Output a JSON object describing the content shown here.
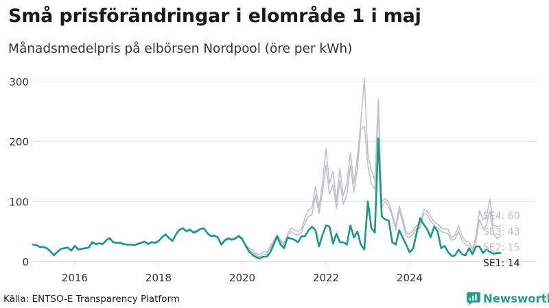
{
  "header": {
    "title": "Små prisförändringar i elområde 1 i maj",
    "subtitle": "Månadsmedelpris på elbörsen Nordpool (öre per kWh)"
  },
  "footer": {
    "source": "Källa: ENTSO-E Transparency Platform",
    "brand": "Newsworthy"
  },
  "colors": {
    "highlight": "#1b9783",
    "muted": "#c0bfc8",
    "muted_label": "#bdbdc3",
    "grid": "#e4e4e4",
    "brand": "#2a9d8f"
  },
  "chart_data": {
    "type": "line",
    "title": "Små prisförändringar i elområde 1 i maj",
    "subtitle": "Månadsmedelpris på elbörsen Nordpool (öre per kWh)",
    "xlabel": "",
    "ylabel": "",
    "x_start": "2015-01",
    "x_ticks": [
      2016,
      2018,
      2020,
      2022,
      2024
    ],
    "y_ticks": [
      0,
      100,
      200,
      300
    ],
    "xlim": [
      2015.0,
      2027.0
    ],
    "ylim": [
      0,
      310
    ],
    "grid": "horizontal",
    "series": [
      {
        "name": "SE4",
        "label": "SE4: 60",
        "highlight": false,
        "values": [
          28,
          27,
          24,
          24,
          22,
          18,
          11,
          16,
          21,
          23,
          24,
          18,
          27,
          21,
          21,
          23,
          24,
          33,
          30,
          31,
          30,
          36,
          40,
          33,
          31,
          32,
          30,
          28,
          29,
          28,
          30,
          32,
          34,
          30,
          33,
          32,
          35,
          41,
          46,
          40,
          35,
          46,
          54,
          56,
          52,
          54,
          50,
          52,
          55,
          56,
          48,
          43,
          44,
          41,
          30,
          37,
          40,
          38,
          40,
          44,
          39,
          28,
          22,
          19,
          13,
          12,
          16,
          16,
          25,
          35,
          44,
          36,
          30,
          46,
          56,
          52,
          50,
          54,
          73,
          86,
          90,
          125,
          90,
          130,
          188,
          130,
          150,
          100,
          155,
          110,
          130,
          180,
          130,
          175,
          230,
          305,
          180,
          152,
          135,
          270,
          100,
          105,
          98,
          80,
          58,
          92,
          72,
          48,
          45,
          52,
          60,
          62,
          86,
          84,
          75,
          66,
          62,
          56,
          54,
          54,
          40,
          44,
          60,
          42,
          34,
          32,
          20,
          42,
          85,
          70,
          75,
          104,
          60,
          58,
          60
        ]
      },
      {
        "name": "SE3",
        "label": "SE3: 43",
        "highlight": false,
        "values": [
          28,
          27,
          24,
          24,
          22,
          18,
          11,
          16,
          21,
          22,
          23,
          18,
          26,
          20,
          21,
          22,
          23,
          32,
          29,
          30,
          29,
          35,
          39,
          32,
          31,
          31,
          29,
          28,
          28,
          27,
          29,
          31,
          33,
          29,
          32,
          31,
          34,
          40,
          45,
          39,
          34,
          45,
          53,
          55,
          50,
          53,
          48,
          50,
          54,
          55,
          47,
          42,
          43,
          40,
          29,
          36,
          39,
          37,
          39,
          43,
          38,
          27,
          19,
          15,
          10,
          8,
          12,
          12,
          22,
          32,
          42,
          33,
          27,
          42,
          50,
          46,
          44,
          48,
          65,
          75,
          78,
          110,
          80,
          115,
          160,
          112,
          128,
          88,
          135,
          95,
          112,
          160,
          115,
          155,
          220,
          225,
          160,
          130,
          120,
          252,
          90,
          100,
          90,
          75,
          52,
          85,
          65,
          42,
          40,
          46,
          55,
          56,
          80,
          78,
          68,
          60,
          56,
          50,
          48,
          46,
          35,
          38,
          50,
          35,
          28,
          26,
          15,
          35,
          70,
          55,
          60,
          84,
          48,
          38,
          43
        ]
      },
      {
        "name": "SE2",
        "label": "SE2: 15",
        "highlight": false,
        "values": [
          28,
          27,
          24,
          24,
          22,
          17,
          10,
          16,
          21,
          22,
          23,
          18,
          26,
          20,
          21,
          22,
          23,
          32,
          29,
          30,
          29,
          35,
          39,
          32,
          31,
          31,
          29,
          28,
          28,
          27,
          29,
          31,
          33,
          29,
          32,
          31,
          34,
          40,
          45,
          39,
          34,
          45,
          53,
          55,
          50,
          53,
          48,
          50,
          54,
          55,
          47,
          42,
          43,
          40,
          28,
          35,
          38,
          36,
          38,
          42,
          37,
          26,
          16,
          11,
          7,
          5,
          8,
          8,
          15,
          28,
          42,
          28,
          22,
          40,
          38,
          36,
          32,
          42,
          42,
          52,
          58,
          52,
          25,
          44,
          60,
          58,
          30,
          46,
          32,
          32,
          28,
          60,
          40,
          50,
          28,
          20,
          100,
          56,
          48,
          205,
          75,
          70,
          68,
          32,
          28,
          52,
          40,
          28,
          15,
          22,
          48,
          72,
          62,
          54,
          40,
          58,
          50,
          22,
          26,
          16,
          9,
          10,
          20,
          12,
          10,
          22,
          12,
          25,
          25,
          14,
          20,
          16,
          13,
          15,
          15
        ]
      },
      {
        "name": "SE1",
        "label": "SE1: 14",
        "highlight": true,
        "values": [
          28,
          27,
          24,
          24,
          22,
          17,
          10,
          16,
          21,
          22,
          23,
          18,
          26,
          20,
          21,
          22,
          23,
          32,
          29,
          30,
          29,
          35,
          39,
          32,
          31,
          31,
          29,
          28,
          28,
          27,
          29,
          31,
          33,
          29,
          32,
          31,
          34,
          40,
          45,
          39,
          34,
          45,
          53,
          55,
          50,
          53,
          48,
          50,
          54,
          55,
          47,
          42,
          43,
          40,
          28,
          35,
          38,
          36,
          38,
          42,
          37,
          26,
          16,
          11,
          7,
          5,
          8,
          8,
          15,
          28,
          42,
          28,
          22,
          40,
          38,
          36,
          32,
          42,
          42,
          52,
          58,
          52,
          25,
          44,
          60,
          58,
          30,
          46,
          32,
          32,
          28,
          60,
          40,
          50,
          28,
          20,
          100,
          56,
          48,
          205,
          75,
          70,
          68,
          32,
          28,
          52,
          40,
          28,
          15,
          22,
          48,
          72,
          62,
          54,
          40,
          58,
          50,
          22,
          26,
          16,
          9,
          10,
          20,
          12,
          10,
          22,
          12,
          25,
          25,
          14,
          20,
          16,
          13,
          14,
          14
        ]
      }
    ]
  }
}
